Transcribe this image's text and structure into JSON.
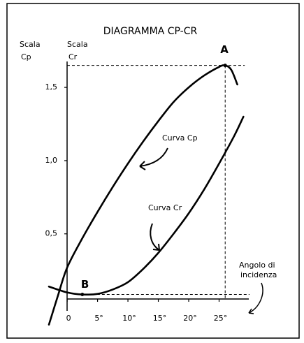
{
  "chart_data": {
    "type": "line",
    "title": "DIAGRAMMA CP-CR",
    "y_label": [
      "Scala",
      "Cp"
    ],
    "y2_label": [
      "Scala",
      "Cr"
    ],
    "x_label": [
      "Angolo di",
      "incidenza"
    ],
    "xlim": [
      -3,
      30
    ],
    "ylim": [
      -0.15,
      1.72
    ],
    "xticks": [
      0,
      {
        "value": 5,
        "label": "5°"
      },
      {
        "value": 10,
        "label": "10°"
      },
      {
        "value": 15,
        "label": "15°"
      },
      {
        "value": 20,
        "label": "20°"
      },
      {
        "value": 25,
        "label": "25°"
      }
    ],
    "yticks": [
      {
        "value": 0.5,
        "label": "0,5"
      },
      {
        "value": 1,
        "label": "1,0"
      },
      {
        "value": 1.5,
        "label": "1,5"
      }
    ],
    "series": [
      {
        "name": "Curva Cp",
        "color": "#000000",
        "x": [
          -3,
          -1.5,
          0,
          2.5,
          5,
          7.5,
          10,
          12.5,
          15,
          17.5,
          20,
          22.5,
          25,
          26,
          27,
          28
        ],
        "values": [
          -0.12,
          0.08,
          0.27,
          0.47,
          0.65,
          0.82,
          0.98,
          1.13,
          1.27,
          1.4,
          1.5,
          1.58,
          1.64,
          1.65,
          1.62,
          1.52
        ]
      },
      {
        "name": "Curva Cr",
        "color": "#000000",
        "x": [
          -3,
          0,
          2.5,
          5,
          7.5,
          10,
          12.5,
          15,
          17.5,
          20,
          22.5,
          25,
          27.5,
          29
        ],
        "values": [
          0.14,
          0.1,
          0.086,
          0.09,
          0.12,
          0.17,
          0.26,
          0.37,
          0.5,
          0.64,
          0.8,
          0.98,
          1.17,
          1.3
        ]
      }
    ],
    "points": [
      {
        "label": "A",
        "x": 26,
        "y": 1.65
      },
      {
        "label": "B",
        "x": 2.5,
        "y": 0.086
      }
    ]
  }
}
